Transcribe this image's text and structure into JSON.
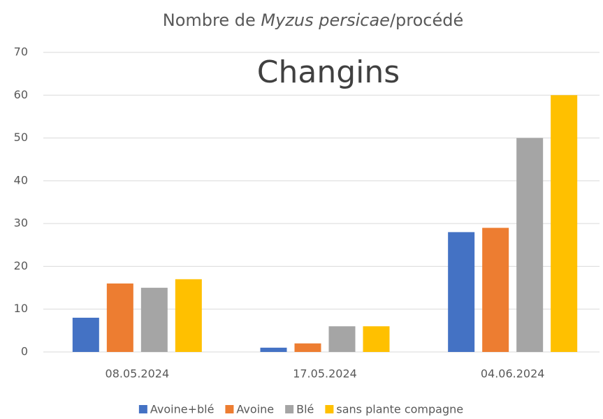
{
  "chart_data": {
    "type": "bar",
    "title": [
      "Nombre de ",
      "Myzus persicae",
      "/procédé"
    ],
    "annotation": "Changins",
    "categories": [
      "08.05.2024",
      "17.05.2024",
      "04.06.2024"
    ],
    "series": [
      {
        "name": "Avoine+blé",
        "color": "#4472c4",
        "values": [
          8,
          1,
          28
        ]
      },
      {
        "name": "Avoine",
        "color": "#ed7d31",
        "values": [
          16,
          2,
          29
        ]
      },
      {
        "name": "Blé",
        "color": "#a5a5a5",
        "values": [
          15,
          6,
          50
        ]
      },
      {
        "name": "sans plante compagne",
        "color": "#ffc000",
        "values": [
          17,
          6,
          60
        ]
      }
    ],
    "ylim": [
      0,
      70
    ],
    "yticks": [
      0,
      10,
      20,
      30,
      40,
      50,
      60,
      70
    ],
    "grid": true,
    "legend": "bottom"
  }
}
